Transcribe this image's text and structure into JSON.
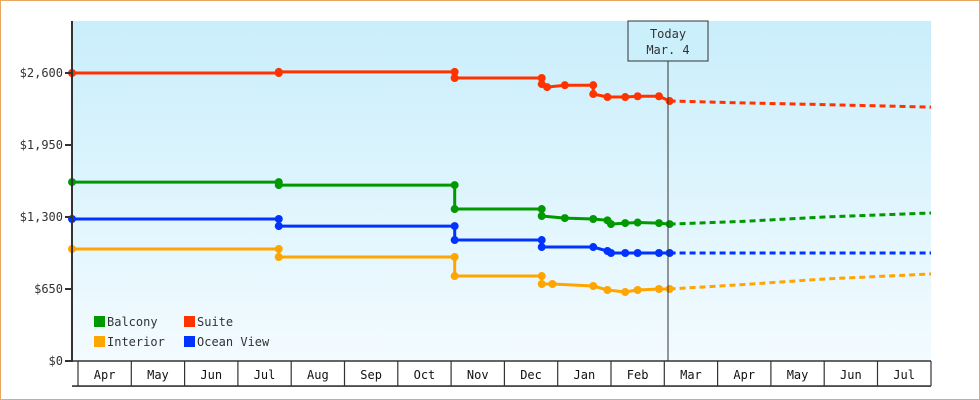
{
  "chart_data": {
    "type": "line",
    "step": true,
    "title": "",
    "xlabel": "",
    "ylabel": "",
    "ylim": [
      0,
      2900
    ],
    "yticks": [
      0,
      650,
      1300,
      1950,
      2600
    ],
    "ytick_labels": [
      "$0",
      "$650",
      "$1,300",
      "$1,950",
      "$2,600"
    ],
    "months": [
      "Apr",
      "May",
      "Jun",
      "Jul",
      "Aug",
      "Sep",
      "Oct",
      "Nov",
      "Dec",
      "Jan",
      "Feb",
      "Mar",
      "Apr",
      "May",
      "Jun",
      "Jul"
    ],
    "today": {
      "label": "Today",
      "date": "Mar. 4",
      "month_index": 11,
      "day": 4
    },
    "legend_position": "bottom-left",
    "background": [
      "#c9eefb",
      "#f3fbff"
    ],
    "series": [
      {
        "name": "Suite",
        "color": "#ff3300",
        "history": [
          [
            0,
            1,
            2600
          ],
          [
            3,
            24,
            2600
          ],
          [
            3,
            24,
            2610
          ],
          [
            7,
            3,
            2610
          ],
          [
            7,
            3,
            2555
          ],
          [
            8,
            22,
            2555
          ],
          [
            8,
            22,
            2500
          ],
          [
            8,
            25,
            2473
          ],
          [
            9,
            5,
            2490
          ],
          [
            9,
            21,
            2490
          ],
          [
            9,
            21,
            2410
          ],
          [
            9,
            29,
            2383
          ],
          [
            10,
            9,
            2383
          ],
          [
            10,
            16,
            2390
          ],
          [
            10,
            28,
            2390
          ],
          [
            11,
            4,
            2347
          ]
        ],
        "forecast": [
          [
            11,
            4,
            2347
          ],
          [
            12,
            15,
            2330
          ],
          [
            14,
            1,
            2315
          ],
          [
            15,
            30,
            2292
          ]
        ]
      },
      {
        "name": "Balcony",
        "color": "#009900",
        "history": [
          [
            0,
            1,
            1615
          ],
          [
            3,
            24,
            1615
          ],
          [
            3,
            24,
            1588
          ],
          [
            7,
            3,
            1588
          ],
          [
            7,
            3,
            1372
          ],
          [
            8,
            22,
            1372
          ],
          [
            8,
            22,
            1309
          ],
          [
            9,
            5,
            1290
          ],
          [
            9,
            21,
            1282
          ],
          [
            9,
            29,
            1270
          ],
          [
            10,
            1,
            1236
          ],
          [
            10,
            9,
            1245
          ],
          [
            10,
            16,
            1250
          ],
          [
            10,
            28,
            1245
          ],
          [
            11,
            4,
            1236
          ]
        ],
        "forecast": [
          [
            11,
            4,
            1236
          ],
          [
            12,
            15,
            1260
          ],
          [
            14,
            1,
            1300
          ],
          [
            15,
            30,
            1336
          ]
        ]
      },
      {
        "name": "Ocean View",
        "color": "#0033ff",
        "history": [
          [
            0,
            1,
            1282
          ],
          [
            3,
            24,
            1282
          ],
          [
            3,
            24,
            1218
          ],
          [
            7,
            3,
            1218
          ],
          [
            7,
            3,
            1092
          ],
          [
            8,
            22,
            1092
          ],
          [
            8,
            22,
            1029
          ],
          [
            9,
            21,
            1029
          ],
          [
            9,
            29,
            993
          ],
          [
            10,
            1,
            975
          ],
          [
            10,
            9,
            975
          ],
          [
            10,
            16,
            975
          ],
          [
            10,
            28,
            975
          ],
          [
            11,
            4,
            975
          ]
        ],
        "forecast": [
          [
            11,
            4,
            975
          ],
          [
            15,
            30,
            975
          ]
        ]
      },
      {
        "name": "Interior",
        "color": "#ffa500",
        "history": [
          [
            0,
            1,
            1011
          ],
          [
            3,
            24,
            1011
          ],
          [
            3,
            24,
            939
          ],
          [
            7,
            3,
            939
          ],
          [
            7,
            3,
            767
          ],
          [
            8,
            22,
            767
          ],
          [
            8,
            22,
            695
          ],
          [
            8,
            28,
            695
          ],
          [
            9,
            21,
            677
          ],
          [
            9,
            29,
            641
          ],
          [
            10,
            9,
            623
          ],
          [
            10,
            16,
            641
          ],
          [
            10,
            28,
            650
          ],
          [
            11,
            4,
            650
          ]
        ],
        "forecast": [
          [
            11,
            4,
            650
          ],
          [
            12,
            15,
            690
          ],
          [
            14,
            1,
            740
          ],
          [
            15,
            30,
            785
          ]
        ]
      }
    ],
    "legend": [
      {
        "name": "Balcony",
        "color": "#009900"
      },
      {
        "name": "Suite",
        "color": "#ff3300"
      },
      {
        "name": "Interior",
        "color": "#ffa500"
      },
      {
        "name": "Ocean View",
        "color": "#0033ff"
      }
    ]
  }
}
